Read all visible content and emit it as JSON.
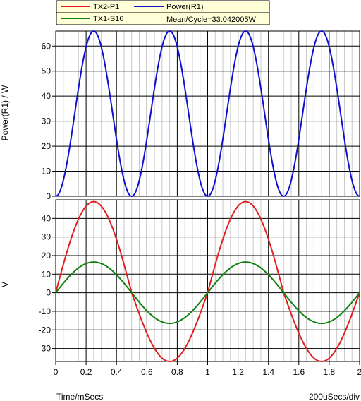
{
  "legend": {
    "entries": [
      {
        "label": "TX2-P1",
        "color": "#e02020"
      },
      {
        "label": "Power(R1)",
        "color": "#1010d0"
      },
      {
        "label": "TX1-S16",
        "color": "#108010"
      }
    ],
    "measurement": "Mean/Cycle=33.042005W",
    "background": "#ffffd8"
  },
  "x_axis": {
    "label": "Time/mSecs",
    "scale_note": "200uSecs/div"
  },
  "chart_data": [
    {
      "type": "line",
      "ylabel": "Power(R1) / W",
      "ylim": [
        0,
        66
      ],
      "yticks": [
        0,
        10,
        20,
        30,
        40,
        50,
        60
      ],
      "xlim": [
        0,
        2
      ],
      "series": [
        {
          "name": "Power(R1)",
          "color": "#1010d0",
          "shape": "sin_squared",
          "amplitude": 66,
          "cycles_per_ms": 1
        }
      ]
    },
    {
      "type": "line",
      "ylabel": "V",
      "ylim": [
        -37,
        50
      ],
      "yticks": [
        -30,
        -20,
        -10,
        0,
        10,
        20,
        30,
        40
      ],
      "xlim": [
        0,
        2
      ],
      "xticks": [
        "0",
        "0.2",
        "0.4",
        "0.6",
        "0.8",
        "1",
        "1.2",
        "1.4",
        "1.6",
        "1.8",
        "2"
      ],
      "series": [
        {
          "name": "TX2-P1",
          "color": "#e02020",
          "shape": "sine_asymmetric",
          "pos_peak": 49,
          "neg_peak": -37,
          "cycles_per_ms": 1
        },
        {
          "name": "TX1-S16",
          "color": "#108010",
          "shape": "sine",
          "amplitude": 16.5,
          "cycles_per_ms": 1
        }
      ]
    }
  ]
}
